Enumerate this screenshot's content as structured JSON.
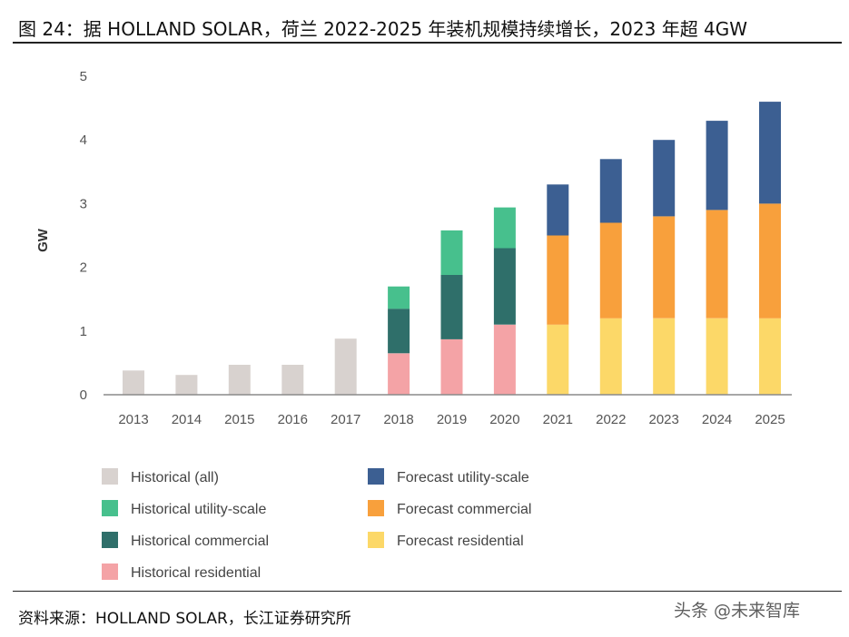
{
  "figure": {
    "title": "图 24：据 HOLLAND SOLAR，荷兰 2022-2025 年装机规模持续增长，2023 年超 4GW",
    "source": "资料来源：HOLLAND SOLAR，长江证券研究所",
    "watermark": "头条 @未来智库"
  },
  "chart_data": {
    "type": "bar",
    "stacked": true,
    "title": "",
    "xlabel": "",
    "ylabel": "GW",
    "ylim": [
      0,
      5
    ],
    "yticks": [
      0,
      1,
      2,
      3,
      4,
      5
    ],
    "grid": false,
    "categories": [
      "2013",
      "2014",
      "2015",
      "2016",
      "2017",
      "2018",
      "2019",
      "2020",
      "2021",
      "2022",
      "2023",
      "2024",
      "2025"
    ],
    "series": [
      {
        "name": "Historical (all)",
        "color": "#d8d2cf",
        "values": [
          0.38,
          0.31,
          0.47,
          0.47,
          0.88,
          0,
          0,
          0,
          0,
          0,
          0,
          0,
          0
        ]
      },
      {
        "name": "Historical residential",
        "color": "#f4a3a6",
        "values": [
          0,
          0,
          0,
          0,
          0,
          0.65,
          0.87,
          1.1,
          0,
          0,
          0,
          0,
          0
        ]
      },
      {
        "name": "Historical commercial",
        "color": "#2f6f6a",
        "values": [
          0,
          0,
          0,
          0,
          0,
          0.7,
          1.01,
          1.2,
          0,
          0,
          0,
          0,
          0
        ]
      },
      {
        "name": "Historical utility-scale",
        "color": "#47c08d",
        "values": [
          0,
          0,
          0,
          0,
          0,
          0.35,
          0.7,
          0.64,
          0,
          0,
          0,
          0,
          0
        ]
      },
      {
        "name": "Forecast residential",
        "color": "#fcd868",
        "values": [
          0,
          0,
          0,
          0,
          0,
          0,
          0,
          0,
          1.1,
          1.2,
          1.2,
          1.2,
          1.2
        ]
      },
      {
        "name": "Forecast commercial",
        "color": "#f8a03c",
        "values": [
          0,
          0,
          0,
          0,
          0,
          0,
          0,
          0,
          1.4,
          1.5,
          1.6,
          1.7,
          1.8
        ]
      },
      {
        "name": "Forecast utility-scale",
        "color": "#3c5f92",
        "values": [
          0,
          0,
          0,
          0,
          0,
          0,
          0,
          0,
          0.8,
          1.0,
          1.2,
          1.4,
          1.6
        ]
      }
    ],
    "legend": {
      "placement": "bottom",
      "entries": [
        {
          "label": "Historical (all)",
          "color": "#d8d2cf"
        },
        {
          "label": "Historical utility-scale",
          "color": "#47c08d"
        },
        {
          "label": "Historical commercial",
          "color": "#2f6f6a"
        },
        {
          "label": "Historical residential",
          "color": "#f4a3a6"
        },
        {
          "label": "Forecast utility-scale",
          "color": "#3c5f92"
        },
        {
          "label": "Forecast commercial",
          "color": "#f8a03c"
        },
        {
          "label": "Forecast residential",
          "color": "#fcd868"
        }
      ]
    }
  }
}
